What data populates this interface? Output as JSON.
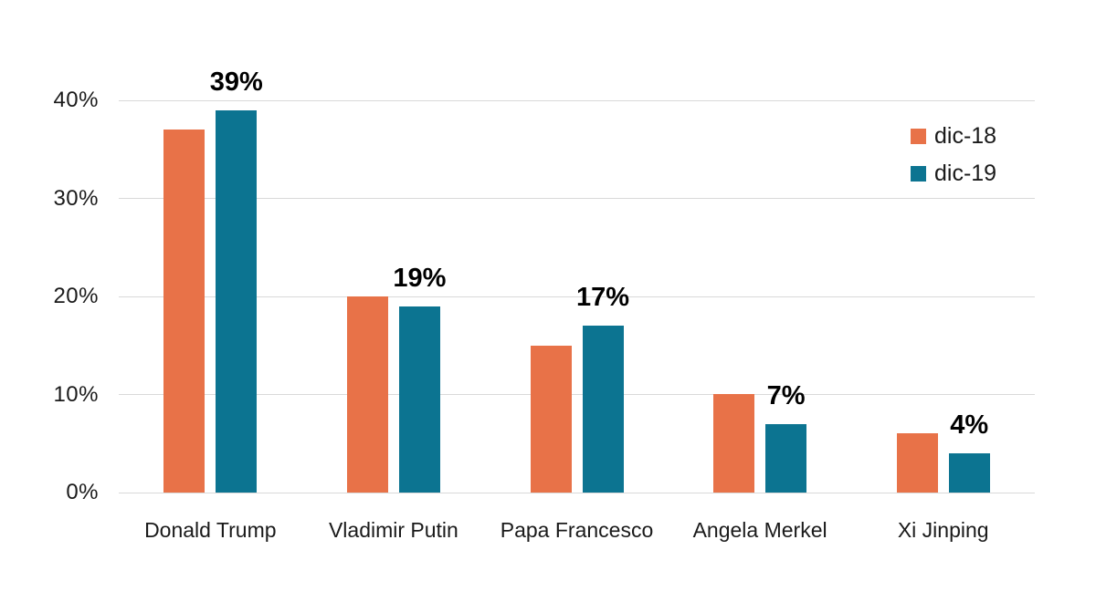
{
  "page": {
    "background": "#FFFFFF"
  },
  "chart_data": {
    "type": "bar",
    "title": "",
    "xlabel": "",
    "ylabel": "",
    "categories": [
      "Donald Trump",
      "Vladimir Putin",
      "Papa Francesco",
      "Angela Merkel",
      "Xi Jinping"
    ],
    "series": [
      {
        "name": "dic-18",
        "color": "#E87248",
        "values": [
          37,
          20,
          15,
          10,
          6
        ]
      },
      {
        "name": "dic-19",
        "color": "#0C7491",
        "values": [
          39,
          19,
          17,
          7,
          4
        ]
      }
    ],
    "data_labels": {
      "series": "dic-19",
      "values": [
        "39%",
        "19%",
        "17%",
        "7%",
        "4%"
      ]
    },
    "ylim": [
      0,
      40
    ],
    "yticks": [
      {
        "value": 0,
        "label": "0%"
      },
      {
        "value": 10,
        "label": "10%"
      },
      {
        "value": 20,
        "label": "20%"
      },
      {
        "value": 30,
        "label": "30%"
      },
      {
        "value": 40,
        "label": "40%"
      }
    ],
    "grid": true,
    "gridline_color": "#D9D9D9",
    "axis_text_color": "#1A1A1A",
    "data_label_color": "#000000",
    "legend": {
      "position": "top-right",
      "items": [
        "dic-18",
        "dic-19"
      ]
    }
  }
}
